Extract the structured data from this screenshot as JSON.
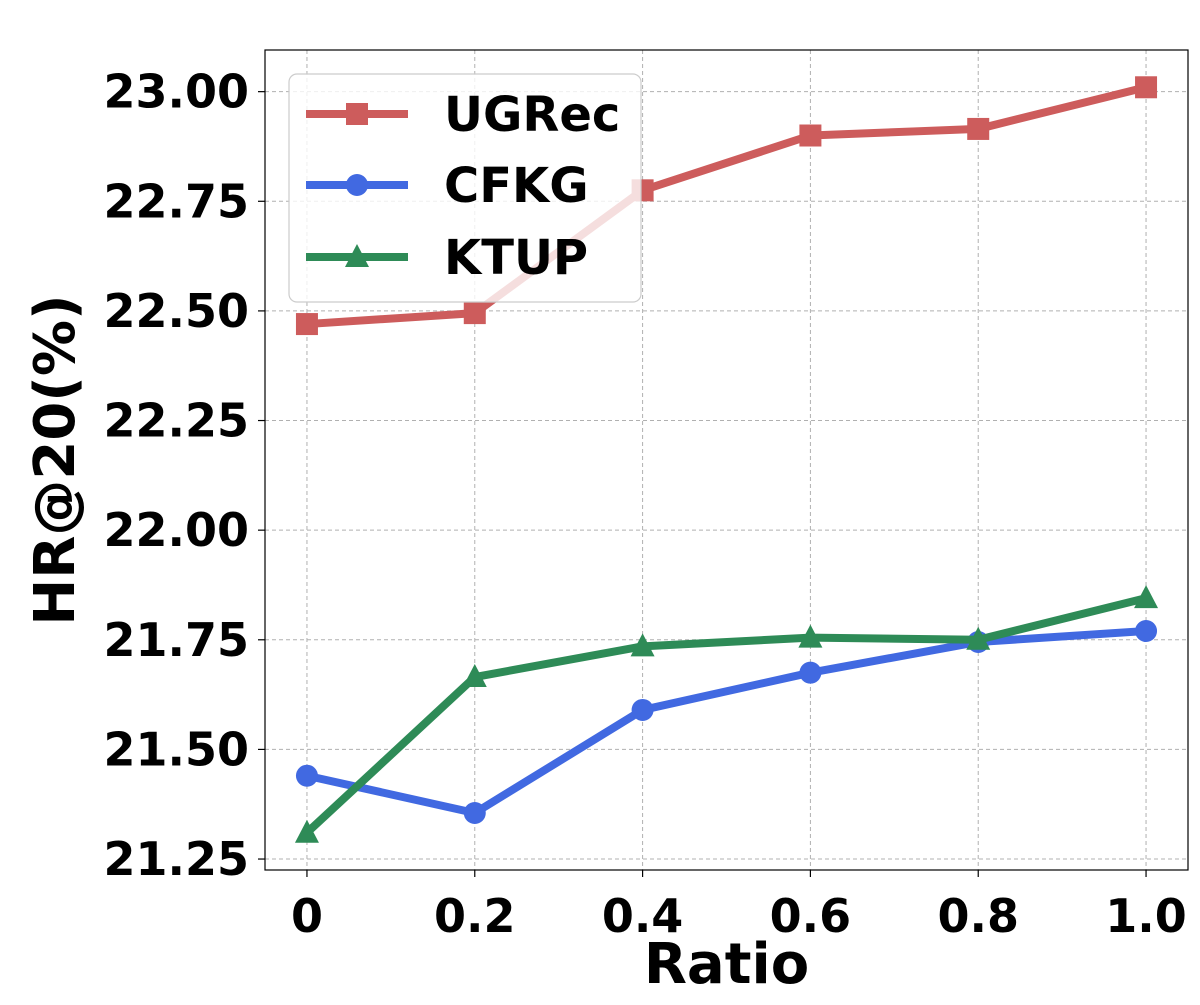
{
  "chart_data": {
    "type": "line",
    "title": "",
    "xlabel": "Ratio",
    "ylabel": "HR@20(%)",
    "x": [
      0,
      0.2,
      0.4,
      0.6,
      0.8,
      1.0
    ],
    "x_tick_labels": [
      "0",
      "0.2",
      "0.4",
      "0.6",
      "0.8",
      "1.0"
    ],
    "xlim": [
      -0.05,
      1.05
    ],
    "ylim": [
      21.225,
      23.095
    ],
    "y_ticks": [
      21.25,
      21.5,
      21.75,
      22.0,
      22.25,
      22.5,
      22.75,
      23.0
    ],
    "y_tick_labels": [
      "21.25",
      "21.50",
      "21.75",
      "22.00",
      "22.25",
      "22.50",
      "22.75",
      "23.00"
    ],
    "grid": true,
    "legend_position": "top-left",
    "series": [
      {
        "name": "UGRec",
        "color": "#cd5c5c",
        "marker": "square",
        "values": [
          22.47,
          22.495,
          22.775,
          22.9,
          22.915,
          23.01
        ]
      },
      {
        "name": "CFKG",
        "color": "#4169e1",
        "marker": "circle",
        "values": [
          21.44,
          21.355,
          21.59,
          21.675,
          21.745,
          21.77
        ]
      },
      {
        "name": "KTUP",
        "color": "#2e8b57",
        "marker": "triangle",
        "values": [
          21.31,
          21.665,
          21.735,
          21.755,
          21.75,
          21.845
        ]
      }
    ]
  }
}
